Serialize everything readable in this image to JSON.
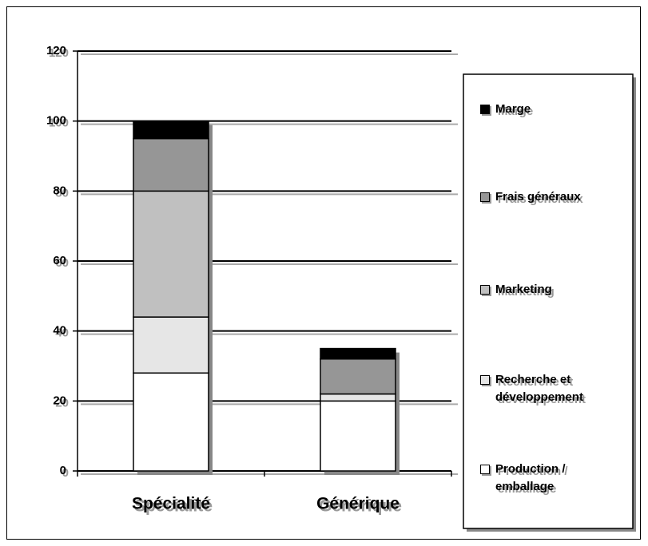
{
  "chart_data": {
    "type": "stacked_bar",
    "categories": [
      "Spécialité",
      "Générique"
    ],
    "series": [
      {
        "name": "Production / emballage",
        "color": "#ffffff",
        "values": [
          28,
          20
        ]
      },
      {
        "name": "Recherche et développement",
        "color": "#e6e6e6",
        "values": [
          16,
          2
        ]
      },
      {
        "name": "Marketing",
        "color": "#c0c0c0",
        "values": [
          36,
          0
        ]
      },
      {
        "name": "Frais généraux",
        "color": "#969696",
        "values": [
          15,
          10
        ]
      },
      {
        "name": "Marge",
        "color": "#000000",
        "values": [
          5,
          3
        ]
      }
    ],
    "ylim": [
      0,
      120
    ],
    "yticks": [
      0,
      20,
      40,
      60,
      80,
      100,
      120
    ],
    "grid": true,
    "legend": "right"
  }
}
